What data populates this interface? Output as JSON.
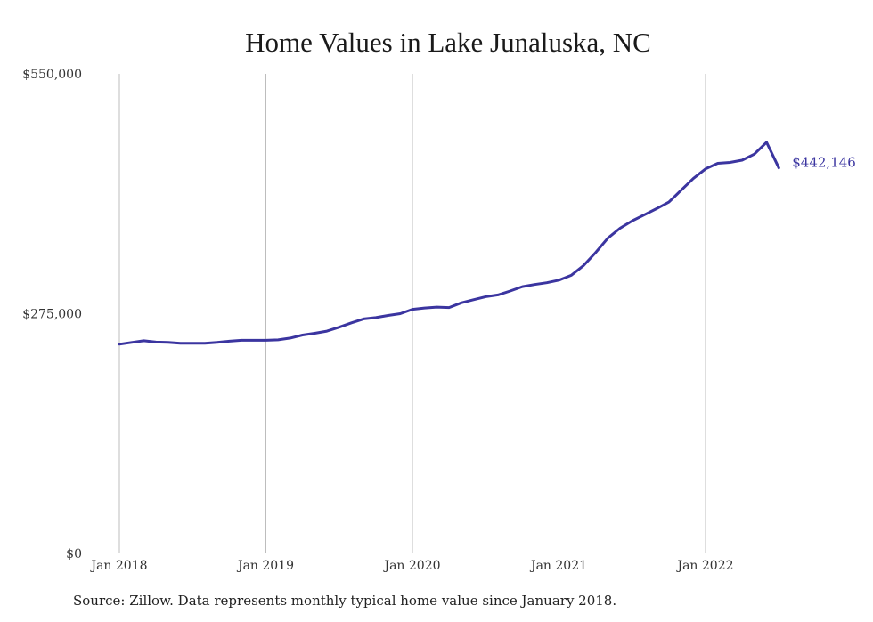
{
  "chart_data": {
    "type": "line",
    "title": "Home Values in Lake Junaluska, NC",
    "xlabel": "",
    "ylabel": "",
    "ylim": [
      0,
      550000
    ],
    "x_ticks": [
      "Jan 2018",
      "Jan 2019",
      "Jan 2020",
      "Jan 2021",
      "Jan 2022"
    ],
    "y_ticks": [
      "$0",
      "$275,000",
      "$550,000"
    ],
    "y_tick_values": [
      0,
      275000,
      550000
    ],
    "grid": "vertical",
    "line_color": "#3b35a0",
    "end_label": "$442,146",
    "series": [
      {
        "x": [
          "2018-01",
          "2018-02",
          "2018-03",
          "2018-04",
          "2018-05",
          "2018-06",
          "2018-07",
          "2018-08",
          "2018-09",
          "2018-10",
          "2018-11",
          "2018-12",
          "2019-01",
          "2019-02",
          "2019-03",
          "2019-04",
          "2019-05",
          "2019-06",
          "2019-07",
          "2019-08",
          "2019-09",
          "2019-10",
          "2019-11",
          "2019-12",
          "2020-01",
          "2020-02",
          "2020-03",
          "2020-04",
          "2020-05",
          "2020-06",
          "2020-07",
          "2020-08",
          "2020-09",
          "2020-10",
          "2020-11",
          "2020-12",
          "2021-01",
          "2021-02",
          "2021-03",
          "2021-04",
          "2021-05",
          "2021-06",
          "2021-07",
          "2021-08",
          "2021-09",
          "2021-10",
          "2021-11",
          "2021-12",
          "2022-01",
          "2022-02",
          "2022-03",
          "2022-04",
          "2022-05",
          "2022-06",
          "2022-07"
        ],
        "values": [
          240000,
          242000,
          244000,
          242500,
          242000,
          241000,
          241000,
          241000,
          242000,
          243500,
          244500,
          244500,
          244500,
          245000,
          247000,
          250500,
          252500,
          255000,
          259500,
          264500,
          269000,
          270500,
          273000,
          275000,
          280000,
          281500,
          282500,
          282000,
          287500,
          291000,
          294500,
          296500,
          301000,
          306000,
          308500,
          310500,
          313500,
          319000,
          330000,
          345000,
          361500,
          373000,
          381500,
          388500,
          395500,
          403000,
          416500,
          430000,
          441000,
          447500,
          448500,
          451000,
          458000,
          471500,
          442146
        ],
        "values_note": ""
      }
    ]
  },
  "source_text": "Source: Zillow. Data represents monthly typical home value since January 2018."
}
